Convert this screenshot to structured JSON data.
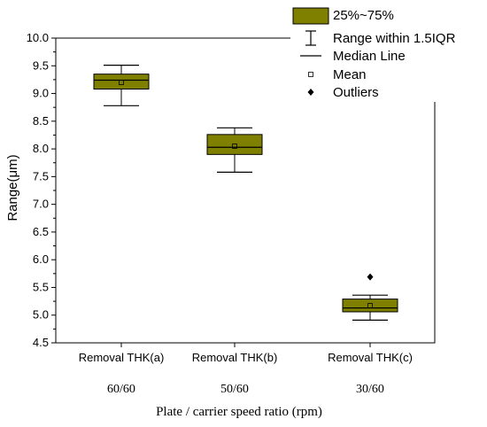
{
  "chart_data": {
    "type": "box",
    "ylabel": "Range(μm)",
    "xlabel": "Plate / carrier speed ratio (rpm)",
    "ylim": [
      4.5,
      10.0
    ],
    "yticks": [
      "4.5",
      "5.0",
      "5.5",
      "6.0",
      "6.5",
      "7.0",
      "7.5",
      "8.0",
      "8.5",
      "9.0",
      "9.5",
      "10.0"
    ],
    "categories": [
      "Removal THK(a)",
      "Removal THK(b)",
      "Removal THK(c)"
    ],
    "speed_ratios": [
      "60/60",
      "50/60",
      "30/60"
    ],
    "boxes": [
      {
        "whisker_low": 8.78,
        "q1": 9.08,
        "median": 9.24,
        "q3": 9.35,
        "whisker_high": 9.51,
        "mean": 9.2,
        "outliers": []
      },
      {
        "whisker_low": 7.58,
        "q1": 7.9,
        "median": 8.03,
        "q3": 8.26,
        "whisker_high": 8.38,
        "mean": 8.05,
        "outliers": []
      },
      {
        "whisker_low": 4.91,
        "q1": 5.06,
        "median": 5.13,
        "q3": 5.29,
        "whisker_high": 5.36,
        "mean": 5.17,
        "outliers": [
          5.69
        ]
      }
    ],
    "legend": {
      "placement": "top-right",
      "items": [
        "25%~75%",
        "Range within 1.5IQR",
        "Median Line",
        "Mean",
        "Outliers"
      ]
    },
    "colors": {
      "box_fill": "#808000",
      "stroke": "#000000"
    },
    "grid": false
  }
}
